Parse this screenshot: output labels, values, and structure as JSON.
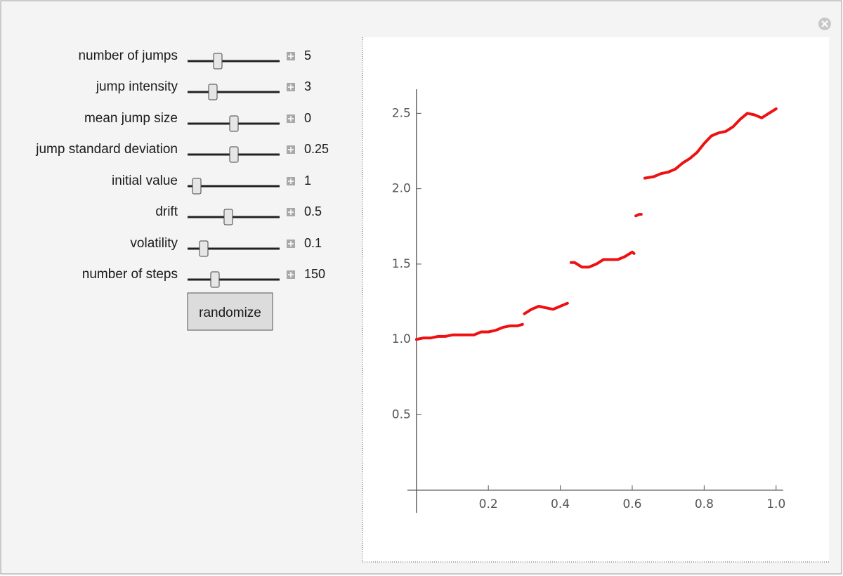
{
  "controls": [
    {
      "label": "number of jumps",
      "value": 5
    },
    {
      "label": "jump intensity",
      "value": 3
    },
    {
      "label": "mean jump size",
      "value": 0
    },
    {
      "label": "jump standard deviation",
      "value": 0.25
    },
    {
      "label": "initial value",
      "value": 1
    },
    {
      "label": "drift",
      "value": 0.5
    },
    {
      "label": "volatility",
      "value": 0.1
    },
    {
      "label": "number of steps",
      "value": 150
    }
  ],
  "button": "randomize",
  "chart_data": {
    "type": "line",
    "color": "#ee1111",
    "x": [
      0,
      0.02,
      0.04,
      0.06,
      0.08,
      0.1,
      0.12,
      0.14,
      0.16,
      0.18,
      0.2,
      0.22,
      0.24,
      0.26,
      0.28,
      0.295,
      0.297,
      0.3,
      0.32,
      0.34,
      0.36,
      0.38,
      0.4,
      0.42,
      0.425,
      0.43,
      0.44,
      0.46,
      0.48,
      0.5,
      0.52,
      0.54,
      0.56,
      0.58,
      0.6,
      0.605,
      0.607,
      0.61,
      0.62,
      0.625,
      0.63,
      0.635,
      0.66,
      0.68,
      0.7,
      0.72,
      0.74,
      0.76,
      0.78,
      0.8,
      0.82,
      0.84,
      0.86,
      0.88,
      0.9,
      0.92,
      0.94,
      0.96,
      0.98,
      1
    ],
    "values": [
      1.0,
      1.01,
      1.01,
      1.02,
      1.02,
      1.03,
      1.03,
      1.03,
      1.03,
      1.05,
      1.05,
      1.06,
      1.08,
      1.09,
      1.09,
      1.1,
      null,
      1.17,
      1.2,
      1.22,
      1.21,
      1.2,
      1.22,
      1.24,
      null,
      1.51,
      1.51,
      1.48,
      1.48,
      1.5,
      1.53,
      1.53,
      1.53,
      1.55,
      1.58,
      1.57,
      null,
      1.82,
      1.83,
      1.83,
      null,
      2.07,
      2.08,
      2.1,
      2.11,
      2.13,
      2.17,
      2.2,
      2.24,
      2.3,
      2.35,
      2.37,
      2.38,
      2.41,
      2.46,
      2.5,
      2.49,
      2.47,
      2.5,
      2.53
    ],
    "xlim": [
      -0.025,
      1.02
    ],
    "ylim": [
      -0.15,
      2.66
    ],
    "xticks": [
      0.2,
      0.4,
      0.6,
      0.8,
      {
        "value": 1,
        "label": "1.0"
      }
    ],
    "yticks": [
      0.5,
      {
        "value": 1,
        "label": "1.0"
      },
      1.5,
      {
        "value": 2,
        "label": "2.0"
      },
      2.5
    ]
  }
}
